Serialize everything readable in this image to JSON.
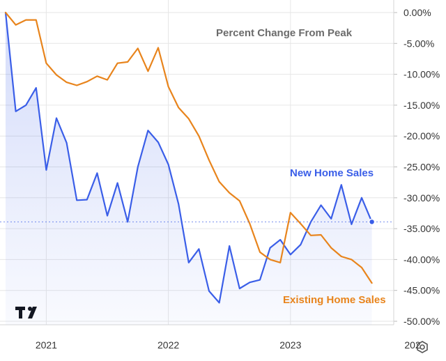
{
  "chart_data": {
    "type": "line",
    "title": "Percent Change From Peak",
    "x_ticks": [
      "2021",
      "2022",
      "2023",
      "202"
    ],
    "y_ticks": [
      "0.00%",
      "-5.00%",
      "-10.00%",
      "-15.00%",
      "-20.00%",
      "-25.00%",
      "-30.00%",
      "-35.00%",
      "-40.00%",
      "-45.00%",
      "-50.00%"
    ],
    "ylim": [
      -50,
      0
    ],
    "grid": true,
    "x": [
      "2020-09",
      "2020-10",
      "2020-11",
      "2020-12",
      "2021-01",
      "2021-02",
      "2021-03",
      "2021-04",
      "2021-05",
      "2021-06",
      "2021-07",
      "2021-08",
      "2021-09",
      "2021-10",
      "2021-11",
      "2021-12",
      "2022-01",
      "2022-02",
      "2022-03",
      "2022-04",
      "2022-05",
      "2022-06",
      "2022-07",
      "2022-08",
      "2022-09",
      "2022-10",
      "2022-11",
      "2022-12",
      "2023-01",
      "2023-02",
      "2023-03",
      "2023-04",
      "2023-05",
      "2023-06",
      "2023-07",
      "2023-08",
      "2023-09"
    ],
    "series": [
      {
        "name": "New Home Sales",
        "color": "#3a5ee8",
        "values": [
          0,
          -16.0,
          -15.0,
          -12.2,
          -25.5,
          -17.1,
          -21.1,
          -30.4,
          -30.3,
          -26.0,
          -32.9,
          -27.6,
          -33.9,
          -25.0,
          -19.1,
          -21.0,
          -24.6,
          -31.0,
          -40.5,
          -38.3,
          -45.1,
          -47.0,
          -37.8,
          -44.7,
          -43.7,
          -43.3,
          -38.1,
          -36.8,
          -39.2,
          -37.6,
          -33.9,
          -31.2,
          -33.4,
          -27.9,
          -34.3,
          -30.0,
          -33.9
        ]
      },
      {
        "name": "Existing Home Sales",
        "color": "#e8841c",
        "values": [
          0,
          -2.0,
          -1.2,
          -1.2,
          -8.2,
          -10.1,
          -11.3,
          -11.8,
          -11.2,
          -10.3,
          -10.9,
          -8.2,
          -8.0,
          -5.8,
          -9.5,
          -5.7,
          -12.0,
          -15.4,
          -17.2,
          -20.0,
          -23.9,
          -27.4,
          -29.2,
          -30.5,
          -34.2,
          -38.8,
          -40.0,
          -40.5,
          -32.4,
          -34.2,
          -36.1,
          -36.0,
          -38.1,
          -39.5,
          -40.0,
          -41.3,
          -43.8
        ]
      }
    ],
    "annotations": {
      "title_label": "Percent Change From Peak",
      "new_label": "New Home Sales",
      "existing_label": "Existing Home Sales"
    },
    "current_value_line": -33.9,
    "colors": {
      "new": "#3a5ee8",
      "existing": "#e8841c",
      "title_text": "#6b6b6b",
      "grid": "#e6e6e6"
    }
  },
  "toolbar": {
    "logo_icon": "tradingview-logo-icon",
    "settings_icon": "settings-gear-icon"
  }
}
